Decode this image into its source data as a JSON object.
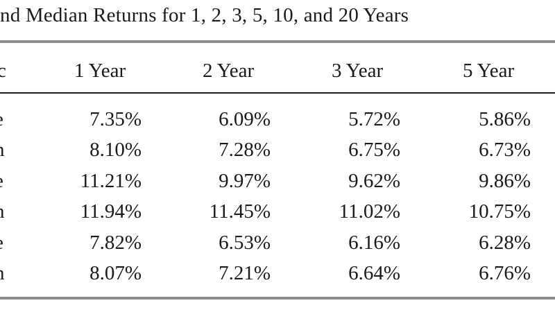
{
  "title": "nd Median Returns for 1, 2, 3, 5, 10, and 20 Years",
  "table": {
    "headers": [
      "c",
      "1 Year",
      "2 Year",
      "3 Year",
      "5 Year"
    ],
    "rows": [
      [
        "e",
        "7.35%",
        "6.09%",
        "5.72%",
        "5.86%"
      ],
      [
        "n",
        "8.10%",
        "7.28%",
        "6.75%",
        "6.73%"
      ],
      [
        "e",
        "11.21%",
        "9.97%",
        "9.62%",
        "9.86%"
      ],
      [
        "n",
        "11.94%",
        "11.45%",
        "11.02%",
        "10.75%"
      ],
      [
        "e",
        "7.82%",
        "6.53%",
        "6.16%",
        "6.28%"
      ],
      [
        "n",
        "8.07%",
        "7.21%",
        "6.64%",
        "6.76%"
      ]
    ]
  }
}
